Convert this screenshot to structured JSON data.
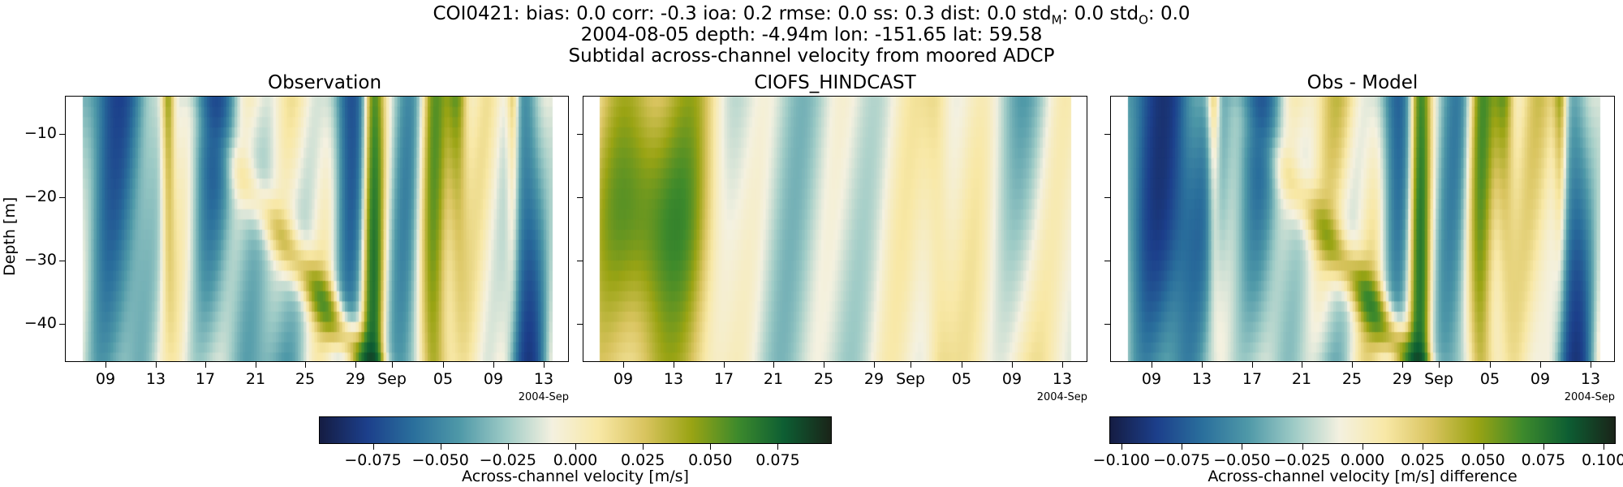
{
  "figure": {
    "title_line1": "COI0421: bias: 0.0  corr: -0.3  ioa: 0.2  rmse: 0.0  ss: 0.3  dist: 0.0  std",
    "title_line1_sub1": "M",
    "title_line1_mid": ": 0.0  std",
    "title_line1_sub2": "O",
    "title_line1_end": ": 0.0",
    "title_line2": "2004-08-05 depth: -4.94m lon: -151.65 lat: 59.58",
    "title_line3": "Subtidal across-channel velocity from moored ADCP",
    "ylabel": "Depth [m]",
    "date_offset_label": "2004-Sep"
  },
  "chart_data": [
    {
      "type": "heatmap",
      "title": "Observation",
      "xlabel": "",
      "ylabel": "Depth [m]",
      "x_ticks": [
        "09",
        "13",
        "17",
        "21",
        "25",
        "29",
        "Sep",
        "05",
        "09",
        "13"
      ],
      "y_ticks": [
        "−10",
        "−20",
        "−30",
        "−40"
      ],
      "y_tick_values": [
        -10,
        -20,
        -30,
        -40
      ],
      "ylim": [
        -46,
        -4
      ],
      "x_range": [
        "2004-08-07",
        "2004-09-13"
      ],
      "colormap": "delta",
      "color_range": [
        -0.095,
        0.095
      ]
    },
    {
      "type": "heatmap",
      "title": "CIOFS_HINDCAST",
      "xlabel": "",
      "x_ticks": [
        "09",
        "13",
        "17",
        "21",
        "25",
        "29",
        "Sep",
        "05",
        "09",
        "13"
      ],
      "ylim": [
        -46,
        -4
      ],
      "x_range": [
        "2004-08-07",
        "2004-09-13"
      ],
      "colormap": "delta",
      "color_range": [
        -0.095,
        0.095
      ]
    },
    {
      "type": "heatmap",
      "title": "Obs - Model",
      "xlabel": "",
      "x_ticks": [
        "09",
        "13",
        "17",
        "21",
        "25",
        "29",
        "Sep",
        "05",
        "09",
        "13"
      ],
      "ylim": [
        -46,
        -4
      ],
      "x_range": [
        "2004-08-07",
        "2004-09-13"
      ],
      "colormap": "delta",
      "color_range": [
        -0.105,
        0.105
      ]
    }
  ],
  "colorbars": [
    {
      "label": "Across-channel velocity [m/s]",
      "ticks": [
        "−0.075",
        "−0.050",
        "−0.025",
        "0.000",
        "0.025",
        "0.050",
        "0.075"
      ],
      "tick_values": [
        -0.075,
        -0.05,
        -0.025,
        0,
        0.025,
        0.05,
        0.075
      ],
      "range": [
        -0.095,
        0.095
      ]
    },
    {
      "label": "Across-channel velocity [m/s] difference",
      "ticks": [
        "−0.100",
        "−0.075",
        "−0.050",
        "−0.025",
        "0.000",
        "0.025",
        "0.050",
        "0.075",
        "0.100"
      ],
      "tick_values": [
        -0.1,
        -0.075,
        -0.05,
        -0.025,
        0,
        0.025,
        0.05,
        0.075,
        0.1
      ],
      "range": [
        -0.105,
        0.105
      ]
    }
  ],
  "colors": {
    "cmap": [
      "#151d44",
      "#1c3f8b",
      "#2a6f9c",
      "#4f99a8",
      "#9ecbc6",
      "#f4f1e0",
      "#f8e8a6",
      "#d9c45f",
      "#9aa414",
      "#3d8a2c",
      "#0d5e33",
      "#1a2519"
    ]
  }
}
